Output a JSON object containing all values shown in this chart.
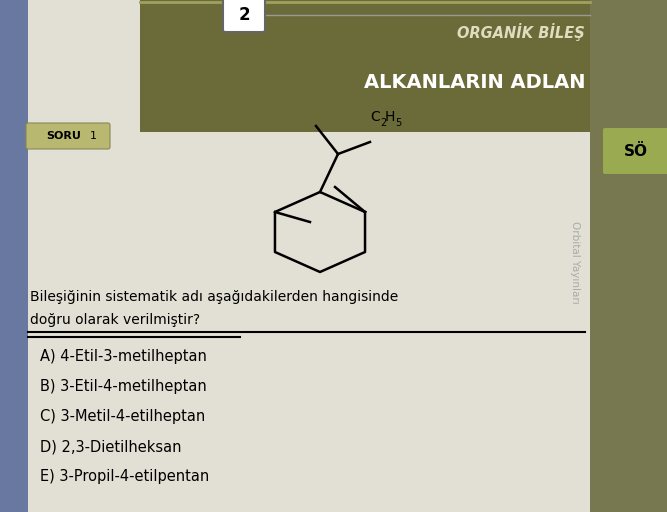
{
  "bg_color": "#a8a89a",
  "page_bg": "#e8e5dc",
  "header_bg": "#6b6b3a",
  "header_text_top": "ORGANİK BİLEŞ",
  "header_text_bot": "ALKANLARIN ADLAN",
  "soru_label": "SORU",
  "soru_num": "1",
  "page_number": "2",
  "question_text1": "Bileşiğinin sistematik adı aşağıdakilerden hangisinde",
  "question_text2": "doğru olarak verilmiştir?",
  "choices": [
    "A) 4-Etil-3-metilheptan",
    "B) 3-Etil-4-metilheptan",
    "C) 3-Metil-4-etilheptan",
    "D) 2,3-Dietilheksan",
    "E) 3-Propil-4-etilpentan"
  ],
  "molecule_label": "C",
  "molecule_sub": "2",
  "molecule_h": "H",
  "molecule_hsub": "5",
  "side_label": "Orbital Yayınları",
  "right_box_text": "SÖ",
  "soru_box_color": "#b8b870",
  "right_strip_color": "#7a7a50",
  "right_box_color": "#9aaa50",
  "watermark_text": "Orbital Yayınları",
  "spine_color": "#5a6090"
}
